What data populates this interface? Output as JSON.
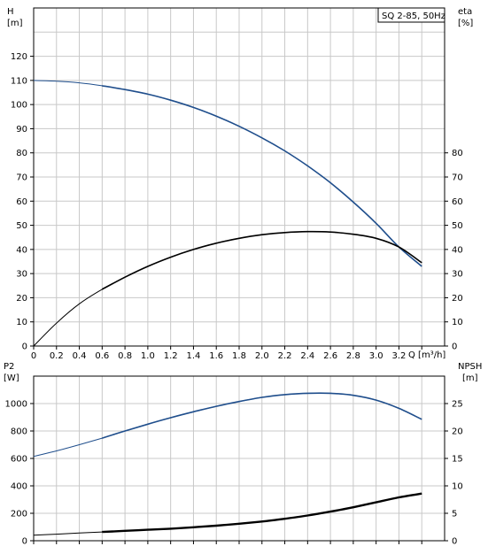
{
  "chart_data": [
    {
      "type": "line",
      "title": "SQ 2-85, 50Hz",
      "xlabel": "Q [m³/h]",
      "x_unit_label": "Q [m³/h]",
      "xlim": [
        0,
        3.6
      ],
      "x_ticks": [
        0,
        0.2,
        0.4,
        0.6,
        0.8,
        1.0,
        1.2,
        1.4,
        1.6,
        1.8,
        2.0,
        2.2,
        2.4,
        2.6,
        2.8,
        3.0,
        3.2
      ],
      "x_tick_labels": [
        "0",
        "0.2",
        "0.4",
        "0.6",
        "0.8",
        "1.0",
        "1.2",
        "1.4",
        "1.6",
        "1.8",
        "2.0",
        "2.2",
        "2.4",
        "2.6",
        "2.8",
        "3.0",
        "3.2"
      ],
      "left_axis": {
        "label_line1": "H",
        "label_line2": "[m]",
        "ylim": [
          0,
          140
        ],
        "ticks": [
          0,
          10,
          20,
          30,
          40,
          50,
          60,
          70,
          80,
          90,
          100,
          110,
          120
        ]
      },
      "right_axis": {
        "label_line1": "eta",
        "label_line2": "[%]",
        "ylim": [
          0,
          140
        ],
        "ticks": [
          0,
          10,
          20,
          30,
          40,
          50,
          60,
          70,
          80
        ]
      },
      "grid": true,
      "legend": "top-right",
      "series": [
        {
          "axis": "left",
          "color": "#1f4e8c",
          "x": [
            0,
            0.2,
            0.4,
            0.6,
            0.8,
            1.0,
            1.2,
            1.4,
            1.6,
            1.8,
            2.0,
            2.2,
            2.4,
            2.6,
            2.8,
            3.0,
            3.2,
            3.4
          ],
          "values": [
            110,
            109.7,
            109,
            107.8,
            106.2,
            104.3,
            101.8,
            98.8,
            95.2,
            91,
            86.2,
            80.8,
            74.6,
            67.6,
            59.6,
            50.8,
            41,
            33
          ]
        },
        {
          "axis": "right",
          "color": "#000000",
          "x": [
            0,
            0.2,
            0.4,
            0.6,
            0.8,
            1.0,
            1.2,
            1.4,
            1.6,
            1.8,
            2.0,
            2.2,
            2.4,
            2.6,
            2.8,
            3.0,
            3.2,
            3.4
          ],
          "values": [
            0,
            9.5,
            17.5,
            23.5,
            28.5,
            33,
            36.8,
            40,
            42.6,
            44.6,
            46.1,
            47,
            47.4,
            47.2,
            46.3,
            44.6,
            41,
            34.5
          ]
        }
      ]
    },
    {
      "type": "line",
      "xlim": [
        0,
        3.6
      ],
      "x_ticks": [
        0,
        0.2,
        0.4,
        0.6,
        0.8,
        1.0,
        1.2,
        1.4,
        1.6,
        1.8,
        2.0,
        2.2,
        2.4,
        2.6,
        2.8,
        3.0,
        3.2
      ],
      "left_axis": {
        "label_line1": "P2",
        "label_line2": "[W]",
        "ylim": [
          0,
          1200
        ],
        "ticks": [
          0,
          200,
          400,
          600,
          800,
          1000
        ]
      },
      "right_axis": {
        "label_line1": "NPSH",
        "label_line2": "[m]",
        "ylim": [
          0,
          30
        ],
        "ticks": [
          0,
          5,
          10,
          15,
          20,
          25
        ]
      },
      "grid": true,
      "series": [
        {
          "axis": "left",
          "color": "#1f4e8c",
          "x": [
            0,
            0.2,
            0.4,
            0.6,
            0.8,
            1.0,
            1.2,
            1.4,
            1.6,
            1.8,
            2.0,
            2.2,
            2.4,
            2.6,
            2.8,
            3.0,
            3.2,
            3.4
          ],
          "values": [
            615,
            655,
            700,
            748,
            800,
            850,
            897,
            940,
            980,
            1015,
            1045,
            1065,
            1075,
            1075,
            1060,
            1025,
            965,
            885
          ]
        },
        {
          "axis": "right",
          "color": "#000000",
          "x": [
            0,
            0.2,
            0.4,
            0.6,
            0.8,
            1.0,
            1.2,
            1.4,
            1.6,
            1.8,
            2.0,
            2.2,
            2.4,
            2.6,
            2.8,
            3.0,
            3.2,
            3.4
          ],
          "values": [
            1,
            1.2,
            1.4,
            1.6,
            1.8,
            2.0,
            2.2,
            2.45,
            2.75,
            3.1,
            3.5,
            4.0,
            4.6,
            5.3,
            6.1,
            7.0,
            7.9,
            8.6
          ]
        }
      ]
    }
  ]
}
